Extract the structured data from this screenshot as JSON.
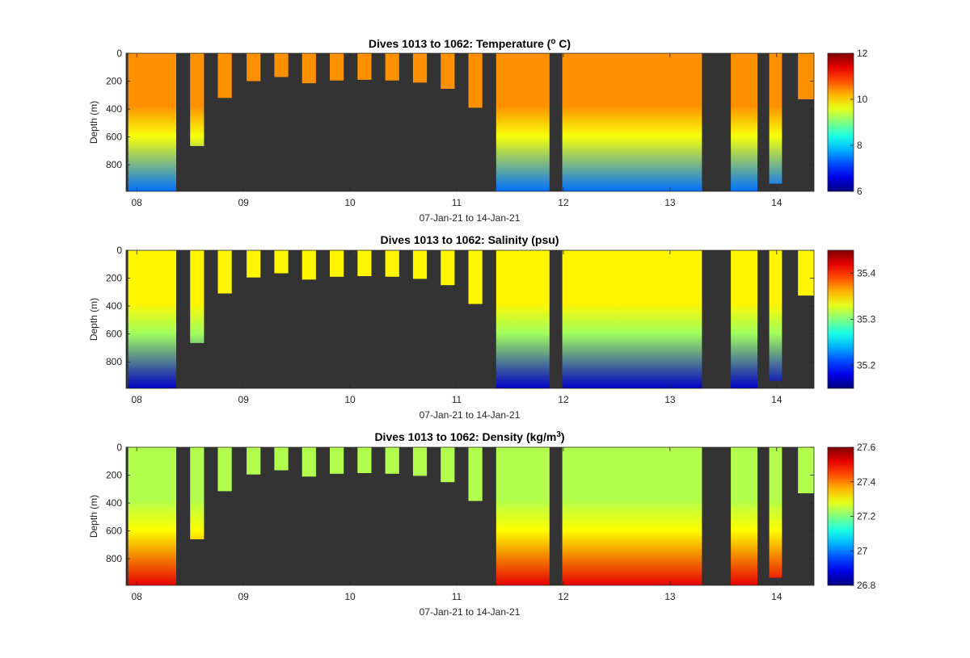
{
  "chart_data": [
    {
      "type": "heatmap",
      "title_prefix": "Dives 1013 to 1062: Temperature (",
      "title_sup": "o",
      "title_suffix": " C)",
      "xlabel": "07-Jan-21 to 14-Jan-21",
      "ylabel": "Depth (m)",
      "xlim": [
        7.9,
        14.35
      ],
      "ylim": [
        990,
        0
      ],
      "y_reversed": true,
      "xticks": [
        "08",
        "09",
        "10",
        "11",
        "12",
        "13",
        "14"
      ],
      "yticks": [
        "0",
        "200",
        "400",
        "600",
        "800"
      ],
      "background": "#333333",
      "colormap": "jet",
      "clim": [
        6,
        12
      ],
      "colorbar_ticks": [
        "6",
        "8",
        "10",
        "12"
      ],
      "profile": {
        "surface": 10.4,
        "thermocline": 9.7,
        "deep": 7.4
      },
      "dives": [
        {
          "start": 7.92,
          "end": 8.37,
          "depth": 990
        },
        {
          "start": 8.5,
          "end": 8.63,
          "depth": 665
        },
        {
          "start": 8.76,
          "end": 8.89,
          "depth": 320
        },
        {
          "start": 9.03,
          "end": 9.16,
          "depth": 200
        },
        {
          "start": 9.29,
          "end": 9.42,
          "depth": 170
        },
        {
          "start": 9.55,
          "end": 9.68,
          "depth": 215
        },
        {
          "start": 9.81,
          "end": 9.94,
          "depth": 195
        },
        {
          "start": 10.07,
          "end": 10.2,
          "depth": 190
        },
        {
          "start": 10.33,
          "end": 10.46,
          "depth": 195
        },
        {
          "start": 10.59,
          "end": 10.72,
          "depth": 210
        },
        {
          "start": 10.85,
          "end": 10.98,
          "depth": 255
        },
        {
          "start": 11.11,
          "end": 11.24,
          "depth": 390
        },
        {
          "start": 11.37,
          "end": 11.87,
          "depth": 990
        },
        {
          "start": 11.99,
          "end": 13.3,
          "depth": 990
        },
        {
          "start": 13.57,
          "end": 13.82,
          "depth": 990
        },
        {
          "start": 13.93,
          "end": 14.05,
          "depth": 935
        },
        {
          "start": 14.2,
          "end": 14.35,
          "depth": 330
        }
      ]
    },
    {
      "type": "heatmap",
      "title_prefix": "Dives 1013 to 1062: Salinity (psu)",
      "title_sup": "",
      "title_suffix": "",
      "xlabel": "07-Jan-21 to 14-Jan-21",
      "ylabel": "Depth (m)",
      "xlim": [
        7.9,
        14.35
      ],
      "ylim": [
        990,
        0
      ],
      "y_reversed": true,
      "xticks": [
        "08",
        "09",
        "10",
        "11",
        "12",
        "13",
        "14"
      ],
      "yticks": [
        "0",
        "200",
        "400",
        "600",
        "800"
      ],
      "background": "#333333",
      "colormap": "jet",
      "clim": [
        35.15,
        35.45
      ],
      "colorbar_ticks": [
        "35.2",
        "35.3",
        "35.4"
      ],
      "profile": {
        "surface": 35.34,
        "thermocline": 35.31,
        "deep": 35.17
      },
      "dives": [
        {
          "start": 7.92,
          "end": 8.37,
          "depth": 990
        },
        {
          "start": 8.5,
          "end": 8.63,
          "depth": 665
        },
        {
          "start": 8.76,
          "end": 8.89,
          "depth": 310
        },
        {
          "start": 9.03,
          "end": 9.16,
          "depth": 195
        },
        {
          "start": 9.29,
          "end": 9.42,
          "depth": 165
        },
        {
          "start": 9.55,
          "end": 9.68,
          "depth": 210
        },
        {
          "start": 9.81,
          "end": 9.94,
          "depth": 190
        },
        {
          "start": 10.07,
          "end": 10.2,
          "depth": 185
        },
        {
          "start": 10.33,
          "end": 10.46,
          "depth": 190
        },
        {
          "start": 10.59,
          "end": 10.72,
          "depth": 205
        },
        {
          "start": 10.85,
          "end": 10.98,
          "depth": 250
        },
        {
          "start": 11.11,
          "end": 11.24,
          "depth": 385
        },
        {
          "start": 11.37,
          "end": 11.87,
          "depth": 990
        },
        {
          "start": 11.99,
          "end": 13.3,
          "depth": 990
        },
        {
          "start": 13.57,
          "end": 13.82,
          "depth": 990
        },
        {
          "start": 13.93,
          "end": 14.05,
          "depth": 935
        },
        {
          "start": 14.2,
          "end": 14.35,
          "depth": 325
        }
      ]
    },
    {
      "type": "heatmap",
      "title_prefix": "Dives 1013 to 1062: Density (kg/m",
      "title_sup": "3",
      "title_suffix": ")",
      "xlabel": "07-Jan-21 to 14-Jan-21",
      "ylabel": "Depth (m)",
      "xlim": [
        7.9,
        14.35
      ],
      "ylim": [
        990,
        0
      ],
      "y_reversed": true,
      "xticks": [
        "08",
        "09",
        "10",
        "11",
        "12",
        "13",
        "14"
      ],
      "yticks": [
        "0",
        "200",
        "400",
        "600",
        "800"
      ],
      "background": "#333333",
      "colormap": "jet",
      "clim": [
        26.8,
        27.6
      ],
      "colorbar_ticks": [
        "26.8",
        "27",
        "27.2",
        "27.4",
        "27.6"
      ],
      "profile": {
        "surface": 27.24,
        "thermocline": 27.3,
        "deep": 27.52
      },
      "dives": [
        {
          "start": 7.92,
          "end": 8.37,
          "depth": 990
        },
        {
          "start": 8.5,
          "end": 8.63,
          "depth": 660
        },
        {
          "start": 8.76,
          "end": 8.89,
          "depth": 315
        },
        {
          "start": 9.03,
          "end": 9.16,
          "depth": 195
        },
        {
          "start": 9.29,
          "end": 9.42,
          "depth": 165
        },
        {
          "start": 9.55,
          "end": 9.68,
          "depth": 210
        },
        {
          "start": 9.81,
          "end": 9.94,
          "depth": 190
        },
        {
          "start": 10.07,
          "end": 10.2,
          "depth": 185
        },
        {
          "start": 10.33,
          "end": 10.46,
          "depth": 190
        },
        {
          "start": 10.59,
          "end": 10.72,
          "depth": 205
        },
        {
          "start": 10.85,
          "end": 10.98,
          "depth": 250
        },
        {
          "start": 11.11,
          "end": 11.24,
          "depth": 385
        },
        {
          "start": 11.37,
          "end": 11.87,
          "depth": 990
        },
        {
          "start": 11.99,
          "end": 13.3,
          "depth": 990
        },
        {
          "start": 13.57,
          "end": 13.82,
          "depth": 990
        },
        {
          "start": 13.93,
          "end": 14.05,
          "depth": 935
        },
        {
          "start": 14.2,
          "end": 14.35,
          "depth": 330
        }
      ]
    }
  ]
}
